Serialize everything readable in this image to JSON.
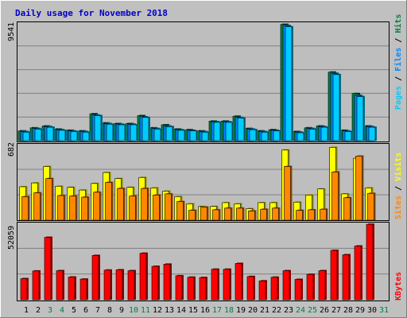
{
  "title": "Daily usage for November 2018",
  "colors": {
    "background": "#c0c0c0",
    "plot_bg": "#bebebe",
    "title": "#0000c8",
    "pages_fill": "#00ccff",
    "pages_side": "#006699",
    "files_fill": "#0088ff",
    "hits_fill": "#008040",
    "sites_fill": "#ff8800",
    "visits_fill": "#ffff00",
    "kbytes_fill": "#ff0000",
    "grid": "#808080",
    "weekend": "#008040",
    "weekday": "#000000"
  },
  "panels": {
    "top": {
      "ymax_label": "9541",
      "legend": {
        "pages": "Pages",
        "sep1": " / ",
        "files": "Files",
        "sep2": " / ",
        "hits": "Hits"
      }
    },
    "middle": {
      "ymax_label": "682",
      "legend": {
        "sites": "Sites",
        "sep": " / ",
        "visits": "Visits"
      }
    },
    "bottom": {
      "ymax_label": "52059",
      "legend": {
        "kbytes": "KBytes"
      }
    }
  },
  "chart_data": [
    {
      "type": "bar",
      "panel": "pages-files-hits",
      "categories": [
        "1",
        "2",
        "3",
        "4",
        "5",
        "6",
        "7",
        "8",
        "9",
        "10",
        "11",
        "12",
        "13",
        "14",
        "15",
        "16",
        "17",
        "18",
        "19",
        "20",
        "21",
        "22",
        "23",
        "24",
        "25",
        "26",
        "27",
        "28",
        "29",
        "30",
        "31"
      ],
      "ylim": [
        0,
        9541
      ],
      "series": [
        {
          "name": "Hits",
          "values": [
            800,
            1050,
            1200,
            950,
            850,
            800,
            2200,
            1450,
            1400,
            1400,
            2050,
            1050,
            1300,
            950,
            900,
            800,
            1600,
            1600,
            2000,
            1000,
            800,
            900,
            9500,
            750,
            1050,
            1200,
            5600,
            850,
            3850,
            1200,
            0
          ]
        },
        {
          "name": "Files",
          "values": [
            750,
            1000,
            1150,
            900,
            800,
            750,
            2100,
            1400,
            1350,
            1350,
            1950,
            1000,
            1200,
            900,
            850,
            750,
            1550,
            1550,
            1900,
            950,
            750,
            850,
            9400,
            700,
            1000,
            1150,
            5500,
            800,
            3700,
            1150,
            0
          ]
        },
        {
          "name": "Pages",
          "values": [
            700,
            950,
            1100,
            850,
            750,
            700,
            2050,
            1350,
            1300,
            1300,
            1900,
            950,
            1150,
            850,
            800,
            700,
            1500,
            1500,
            1850,
            900,
            700,
            800,
            9300,
            650,
            950,
            1100,
            5400,
            750,
            3600,
            1100,
            0
          ]
        }
      ]
    },
    {
      "type": "bar",
      "panel": "visits-sites",
      "categories": [
        "1",
        "2",
        "3",
        "4",
        "5",
        "6",
        "7",
        "8",
        "9",
        "10",
        "11",
        "12",
        "13",
        "14",
        "15",
        "16",
        "17",
        "18",
        "19",
        "20",
        "21",
        "22",
        "23",
        "24",
        "25",
        "26",
        "27",
        "28",
        "29",
        "30",
        "31"
      ],
      "ylim": [
        0,
        682
      ],
      "series": [
        {
          "name": "Visits",
          "values": [
            305,
            340,
            490,
            310,
            300,
            275,
            335,
            435,
            380,
            300,
            390,
            295,
            265,
            215,
            150,
            125,
            125,
            160,
            150,
            105,
            160,
            160,
            640,
            165,
            230,
            285,
            665,
            240,
            565,
            295,
            0
          ]
        },
        {
          "name": "Sites",
          "values": [
            215,
            250,
            380,
            225,
            220,
            210,
            255,
            345,
            290,
            220,
            290,
            230,
            240,
            170,
            90,
            120,
            95,
            110,
            110,
            85,
            100,
            110,
            490,
            90,
            95,
            100,
            440,
            205,
            585,
            245,
            0
          ]
        }
      ]
    },
    {
      "type": "bar",
      "panel": "kbytes",
      "categories": [
        "1",
        "2",
        "3",
        "4",
        "5",
        "6",
        "7",
        "8",
        "9",
        "10",
        "11",
        "12",
        "13",
        "14",
        "15",
        "16",
        "17",
        "18",
        "19",
        "20",
        "21",
        "22",
        "23",
        "24",
        "25",
        "26",
        "27",
        "28",
        "29",
        "30",
        "31"
      ],
      "ylim": [
        0,
        52059
      ],
      "series": [
        {
          "name": "KBytes",
          "values": [
            14500,
            19800,
            43000,
            20000,
            15600,
            14200,
            30500,
            20400,
            20600,
            20000,
            32000,
            23000,
            24500,
            16500,
            15500,
            15300,
            21000,
            21000,
            25000,
            16000,
            13000,
            15500,
            20000,
            14000,
            17500,
            20000,
            34000,
            31000,
            37000,
            52000,
            0
          ]
        }
      ]
    }
  ],
  "x_labels": [
    "1",
    "2",
    "3",
    "4",
    "5",
    "6",
    "7",
    "8",
    "9",
    "10",
    "11",
    "12",
    "13",
    "14",
    "15",
    "16",
    "17",
    "18",
    "19",
    "20",
    "21",
    "22",
    "23",
    "24",
    "25",
    "26",
    "27",
    "28",
    "29",
    "30",
    "31"
  ],
  "weekend_days": [
    "3",
    "4",
    "10",
    "11",
    "17",
    "18",
    "24",
    "25",
    "31"
  ]
}
